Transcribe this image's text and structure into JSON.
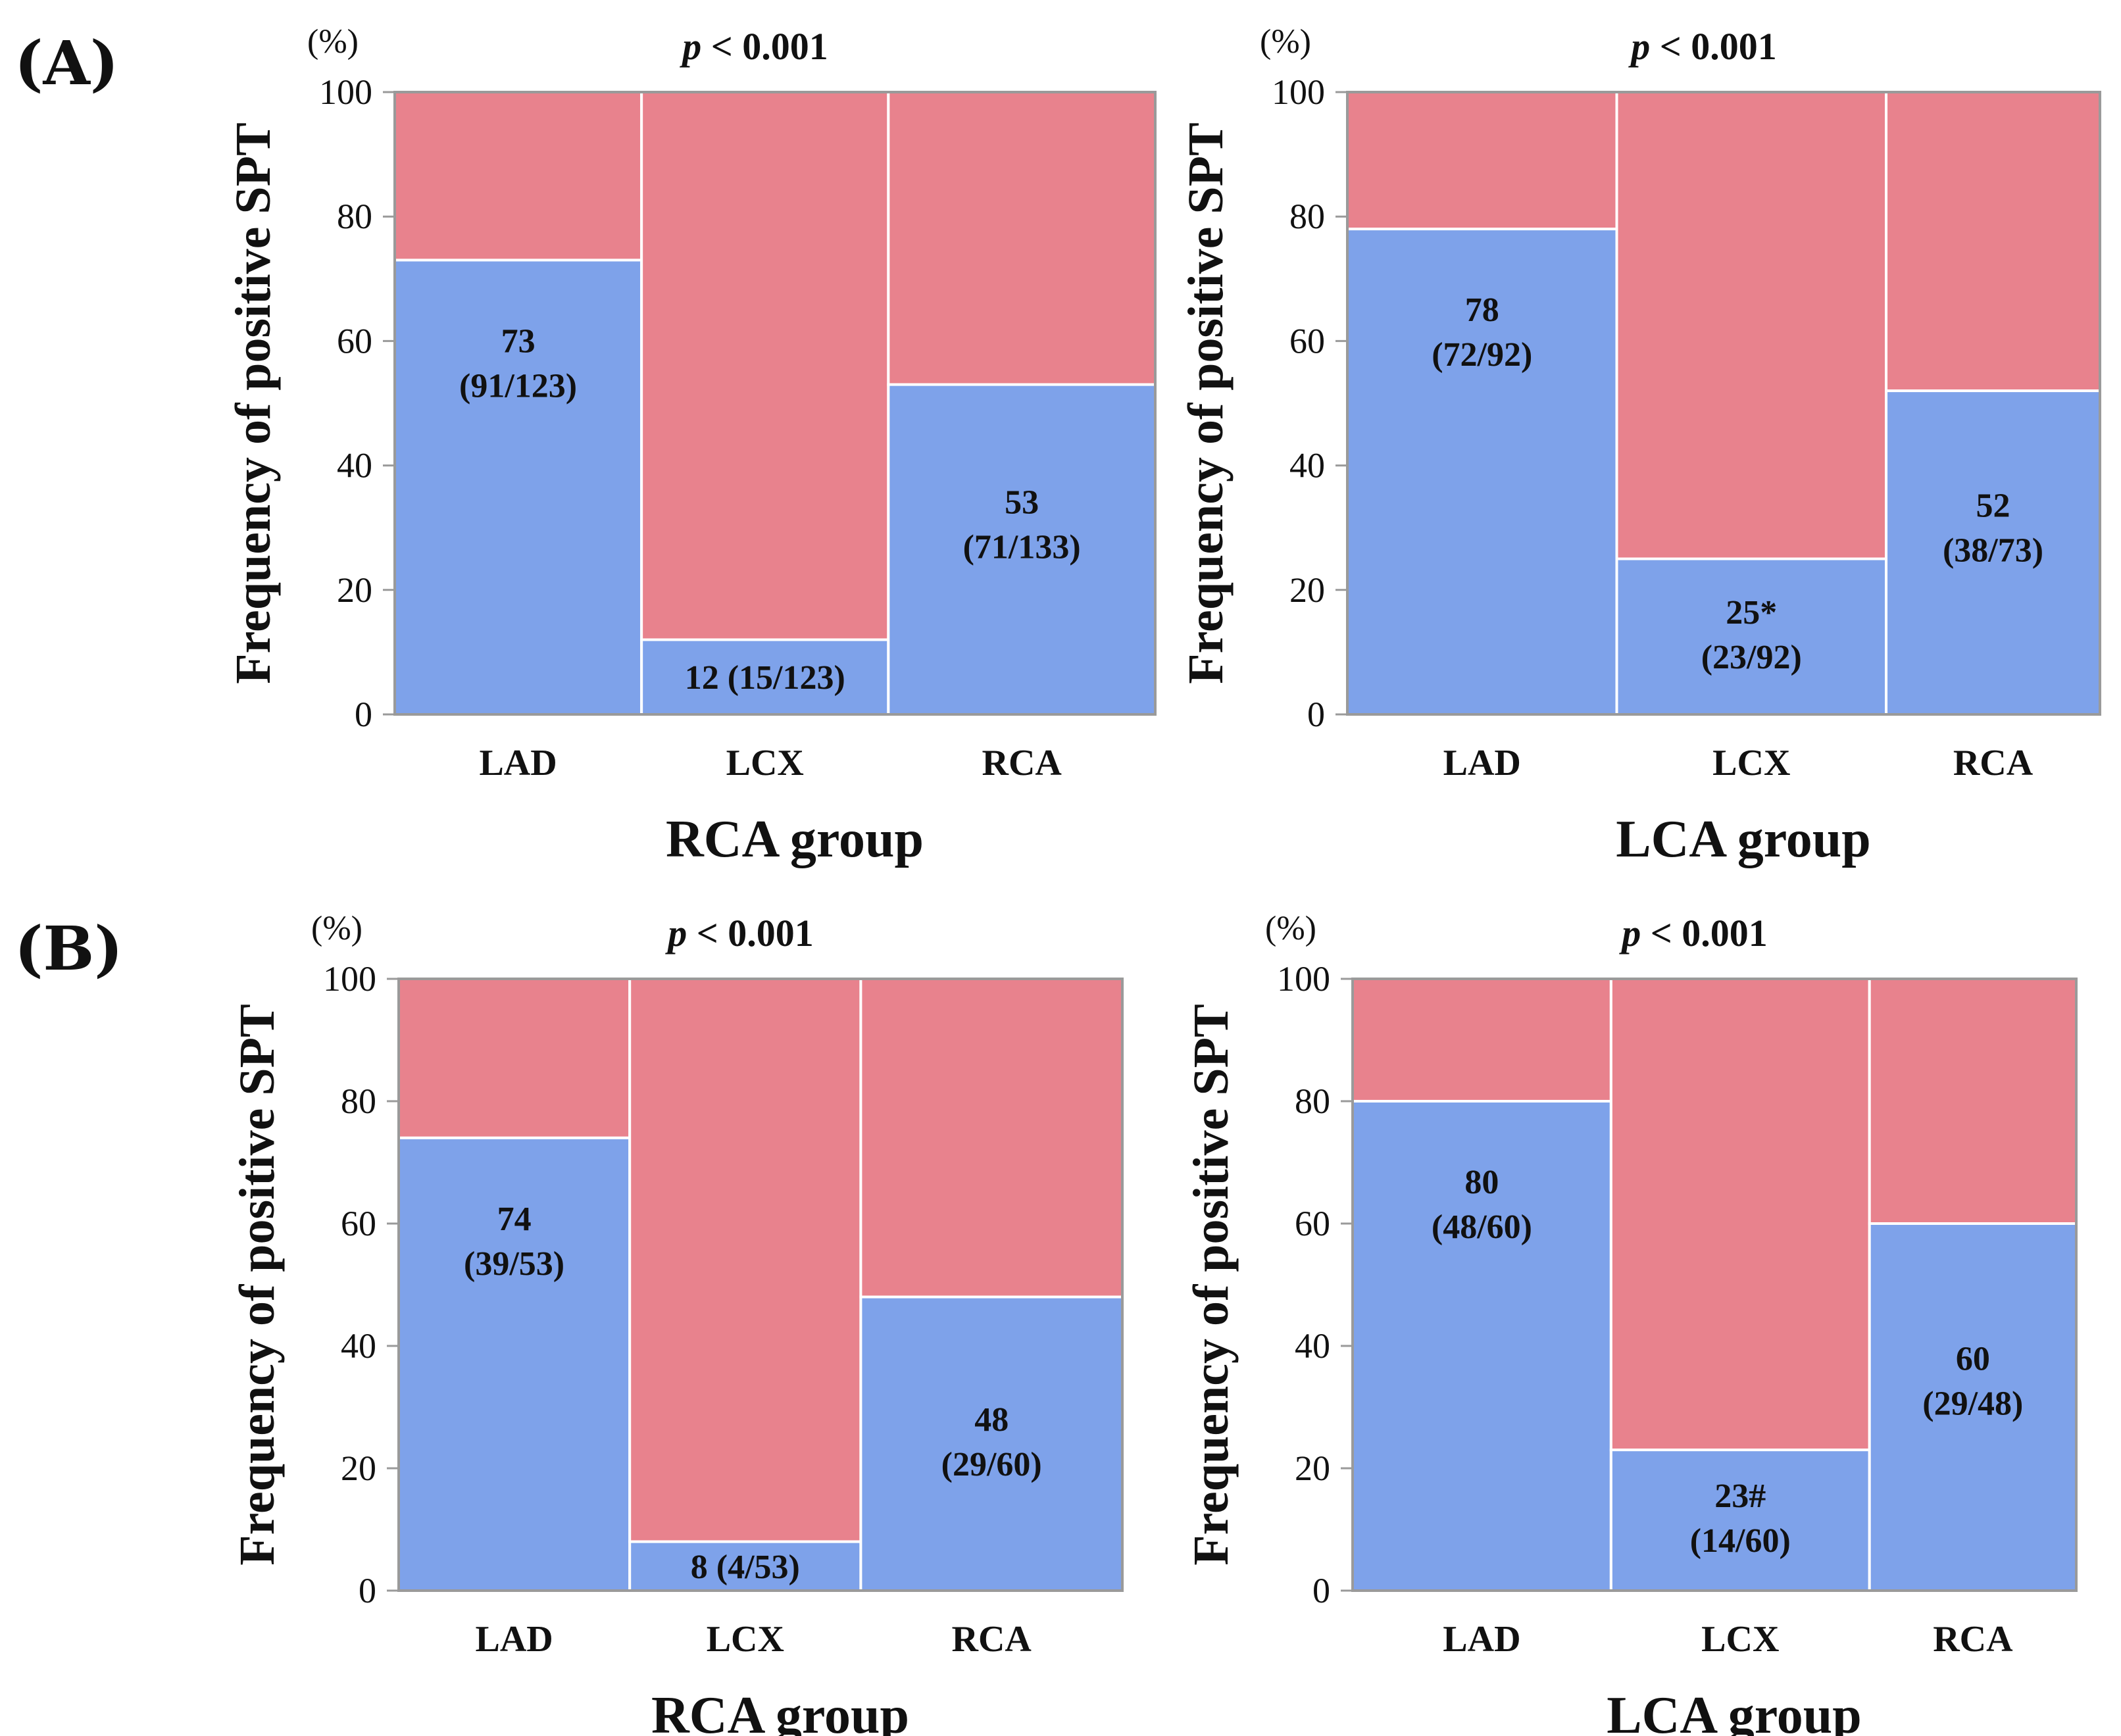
{
  "colors": {
    "positive": "#7ea2ea",
    "negative": "#e8828d",
    "frame": "#9a9a9a",
    "text": "#111111"
  },
  "panels": [
    {
      "id": "A",
      "text": "(A)"
    },
    {
      "id": "B",
      "text": "(B)"
    }
  ],
  "chart_data": [
    {
      "type": "bar",
      "panel": "A",
      "title": "p < 0.001",
      "title_italic": "p",
      "title_rest": " < 0.001",
      "ylabel": "Frequency of positive SPT",
      "yunit": "(%)",
      "xlabel": "RCA group",
      "ylim": [
        0,
        100
      ],
      "yticks": [
        0,
        20,
        40,
        60,
        80,
        100
      ],
      "categories": [
        "LAD",
        "LCX",
        "RCA"
      ],
      "widths": [
        123,
        123,
        133
      ],
      "series": [
        {
          "name": "positive",
          "values": [
            73,
            12,
            53
          ]
        },
        {
          "name": "negative",
          "values": [
            27,
            88,
            47
          ]
        }
      ],
      "labels": [
        {
          "value": "73",
          "fraction": "(91/123)",
          "inline": false
        },
        {
          "value": "12",
          "fraction": "(15/123)",
          "inline": true
        },
        {
          "value": "53",
          "fraction": "(71/133)",
          "inline": false
        }
      ]
    },
    {
      "type": "bar",
      "panel": "A",
      "title": "p < 0.001",
      "title_italic": "p",
      "title_rest": " < 0.001",
      "ylabel": "Frequency of positive SPT",
      "yunit": "(%)",
      "xlabel": "LCA group",
      "ylim": [
        0,
        100
      ],
      "yticks": [
        0,
        20,
        40,
        60,
        80,
        100
      ],
      "categories": [
        "LAD",
        "LCX",
        "RCA"
      ],
      "widths": [
        92,
        92,
        73
      ],
      "series": [
        {
          "name": "positive",
          "values": [
            78,
            25,
            52
          ]
        },
        {
          "name": "negative",
          "values": [
            22,
            75,
            48
          ]
        }
      ],
      "labels": [
        {
          "value": "78",
          "fraction": "(72/92)",
          "inline": false
        },
        {
          "value": "25*",
          "fraction": "(23/92)",
          "inline": false
        },
        {
          "value": "52",
          "fraction": "(38/73)",
          "inline": false
        }
      ]
    },
    {
      "type": "bar",
      "panel": "B",
      "title": "p < 0.001",
      "title_italic": "p",
      "title_rest": " < 0.001",
      "ylabel": "Frequency of positive SPT",
      "yunit": "(%)",
      "xlabel": "RCA group",
      "ylim": [
        0,
        100
      ],
      "yticks": [
        0,
        20,
        40,
        60,
        80,
        100
      ],
      "categories": [
        "LAD",
        "LCX",
        "RCA"
      ],
      "widths": [
        53,
        53,
        60
      ],
      "series": [
        {
          "name": "positive",
          "values": [
            74,
            8,
            48
          ]
        },
        {
          "name": "negative",
          "values": [
            26,
            92,
            52
          ]
        }
      ],
      "labels": [
        {
          "value": "74",
          "fraction": "(39/53)",
          "inline": false
        },
        {
          "value": "8",
          "fraction": "(4/53)",
          "inline": true
        },
        {
          "value": "48",
          "fraction": "(29/60)",
          "inline": false
        }
      ]
    },
    {
      "type": "bar",
      "panel": "B",
      "title": "p < 0.001",
      "title_italic": "p",
      "title_rest": " < 0.001",
      "ylabel": "Frequency of positive SPT",
      "yunit": "(%)",
      "xlabel": "LCA group",
      "ylim": [
        0,
        100
      ],
      "yticks": [
        0,
        20,
        40,
        60,
        80,
        100
      ],
      "categories": [
        "LAD",
        "LCX",
        "RCA"
      ],
      "widths": [
        60,
        60,
        48
      ],
      "series": [
        {
          "name": "positive",
          "values": [
            80,
            23,
            60
          ]
        },
        {
          "name": "negative",
          "values": [
            20,
            77,
            40
          ]
        }
      ],
      "labels": [
        {
          "value": "80",
          "fraction": "(48/60)",
          "inline": false
        },
        {
          "value": "23#",
          "fraction": "(14/60)",
          "inline": false
        },
        {
          "value": "60",
          "fraction": "(29/48)",
          "inline": false
        }
      ]
    }
  ]
}
